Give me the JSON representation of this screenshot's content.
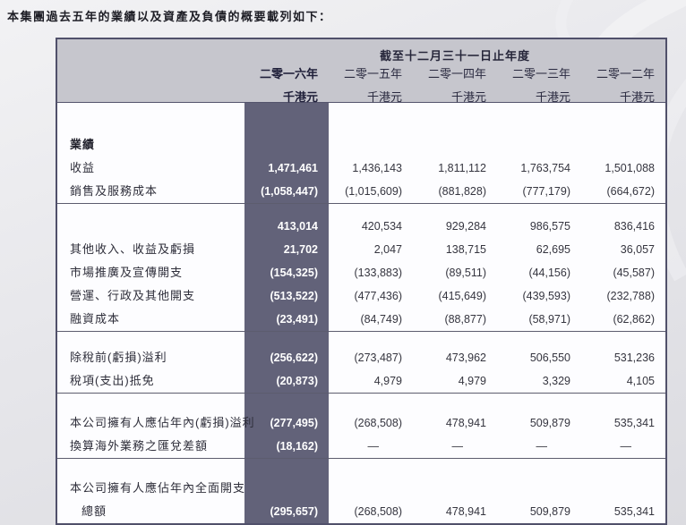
{
  "page": {
    "intro": "本集團過去五年的業績以及資產及負債的概要載列如下："
  },
  "table": {
    "period_header": "截至十二月三十一日止年度",
    "unit_label": "千港元",
    "years": [
      "二零一六年",
      "二零一五年",
      "二零一四年",
      "二零一三年",
      "二零一二年"
    ],
    "sections": [
      {
        "rows": [
          {
            "label": "業績",
            "bold": true,
            "values": [
              "",
              "",
              "",
              "",
              ""
            ]
          },
          {
            "label": "收益",
            "values": [
              "1,471,461",
              "1,436,143",
              "1,811,112",
              "1,763,754",
              "1,501,088"
            ]
          },
          {
            "label": "銷售及服務成本",
            "values": [
              "(1,058,447)",
              "(1,015,609)",
              "(881,828)",
              "(777,179)",
              "(664,672)"
            ]
          }
        ]
      },
      {
        "rows": [
          {
            "label": "",
            "values": [
              "413,014",
              "420,534",
              "929,284",
              "986,575",
              "836,416"
            ]
          },
          {
            "label": "其他收入、收益及虧損",
            "values": [
              "21,702",
              "2,047",
              "138,715",
              "62,695",
              "36,057"
            ]
          },
          {
            "label": "市場推廣及宣傳開支",
            "values": [
              "(154,325)",
              "(133,883)",
              "(89,511)",
              "(44,156)",
              "(45,587)"
            ]
          },
          {
            "label": "營運、行政及其他開支",
            "values": [
              "(513,522)",
              "(477,436)",
              "(415,649)",
              "(439,593)",
              "(232,788)"
            ]
          },
          {
            "label": "融資成本",
            "values": [
              "(23,491)",
              "(84,749)",
              "(88,877)",
              "(58,971)",
              "(62,862)"
            ]
          }
        ]
      },
      {
        "rows": [
          {
            "label": "除稅前(虧損)溢利",
            "values": [
              "(256,622)",
              "(273,487)",
              "473,962",
              "506,550",
              "531,236"
            ]
          },
          {
            "label": "稅項(支出)抵免",
            "values": [
              "(20,873)",
              "4,979",
              "4,979",
              "3,329",
              "4,105"
            ]
          }
        ]
      },
      {
        "rows": [
          {
            "label": "本公司擁有人應佔年內(虧損)溢利",
            "values": [
              "(277,495)",
              "(268,508)",
              "478,941",
              "509,879",
              "535,341"
            ]
          },
          {
            "label": "換算海外業務之匯兌差額",
            "values": [
              "(18,162)",
              "—",
              "—",
              "—",
              "—"
            ]
          }
        ]
      },
      {
        "rows": [
          {
            "label": "本公司擁有人應佔年內全面開支",
            "values": [
              "",
              "",
              "",
              "",
              ""
            ]
          },
          {
            "label": "總額",
            "indent": true,
            "values": [
              "(295,657)",
              "(268,508)",
              "478,941",
              "509,879",
              "535,341"
            ]
          }
        ]
      }
    ]
  },
  "colors": {
    "highlight_column": "#626279",
    "header_band": "#c6c6cd",
    "table_border": "#50506a",
    "page_background": "#e7e7eb"
  }
}
